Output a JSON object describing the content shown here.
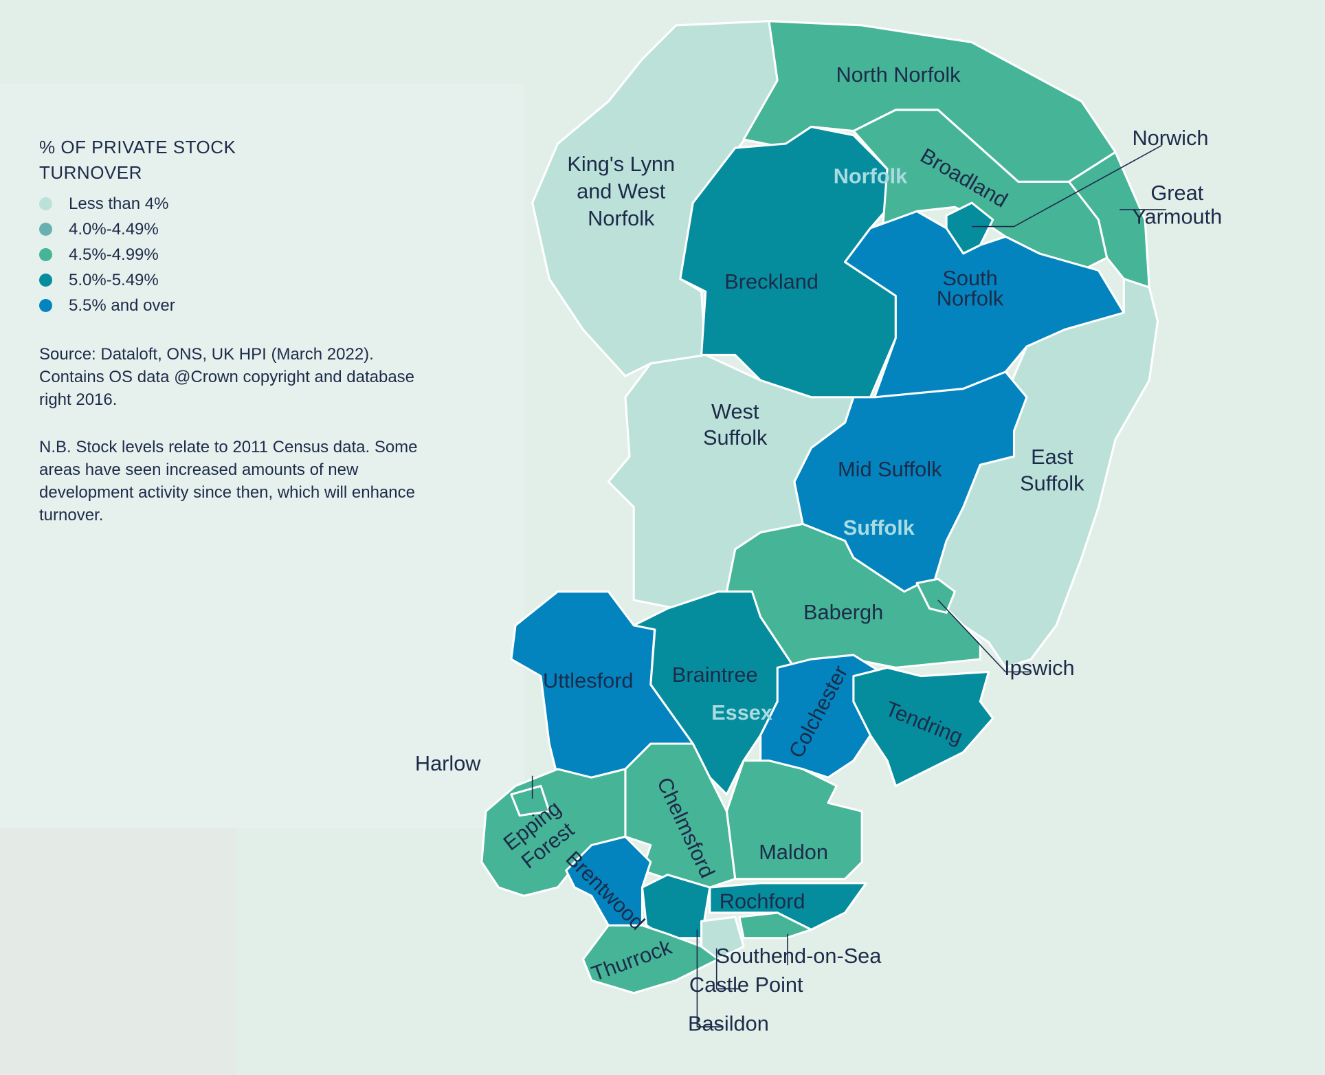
{
  "legend": {
    "title": "% OF PRIVATE STOCK TURNOVER",
    "items": [
      {
        "label": "Less than 4%",
        "color": "#bce1d9"
      },
      {
        "label": "4.0%-4.49%",
        "color": "#6bb0b1"
      },
      {
        "label": "4.5%-4.99%",
        "color": "#46b496"
      },
      {
        "label": "5.0%-5.49%",
        "color": "#068d9d"
      },
      {
        "label": "5.5% and over",
        "color": "#0384bf"
      }
    ]
  },
  "source": "Source: Dataloft, ONS, UK HPI (March 2022). Contains OS data @Crown copyright and database right 2016.",
  "note": "N.B. Stock levels relate to 2011 Census data. Some areas have seen increased amounts of new development activity since then, which will enhance turnover.",
  "counties": [
    "Norfolk",
    "Suffolk",
    "Essex"
  ],
  "regions": [
    {
      "lines": [
        "King's Lynn",
        "and West",
        "Norfolk"
      ],
      "color": "#bce1d9"
    },
    {
      "lines": [
        "North Norfolk"
      ],
      "color": "#46b496"
    },
    {
      "lines": [
        "Breckland"
      ],
      "color": "#068d9d"
    },
    {
      "lines": [
        "Broadland"
      ],
      "color": "#46b496"
    },
    {
      "lines": [
        "Norwich"
      ],
      "color": "#068d9d"
    },
    {
      "lines": [
        "Great",
        "Yarmouth"
      ],
      "color": "#46b496"
    },
    {
      "lines": [
        "South",
        "Norfolk"
      ],
      "color": "#0384bf"
    },
    {
      "lines": [
        "East",
        "Suffolk"
      ],
      "color": "#bce1d9"
    },
    {
      "lines": [
        "Mid Suffolk"
      ],
      "color": "#0384bf"
    },
    {
      "lines": [
        "West",
        "Suffolk"
      ],
      "color": "#bce1d9"
    },
    {
      "lines": [
        "Babergh"
      ],
      "color": "#46b496"
    },
    {
      "lines": [
        "Ipswich"
      ],
      "color": "#46b496"
    },
    {
      "lines": [
        "Uttlesford"
      ],
      "color": "#0384bf"
    },
    {
      "lines": [
        "Braintree"
      ],
      "color": "#068d9d"
    },
    {
      "lines": [
        "Colchester"
      ],
      "color": "#0384bf"
    },
    {
      "lines": [
        "Tendring"
      ],
      "color": "#068d9d"
    },
    {
      "lines": [
        "Maldon"
      ],
      "color": "#46b496"
    },
    {
      "lines": [
        "Chelmsford"
      ],
      "color": "#46b496"
    },
    {
      "lines": [
        "Epping",
        "Forest"
      ],
      "color": "#46b496"
    },
    {
      "lines": [
        "Harlow"
      ],
      "color": "#46b496"
    },
    {
      "lines": [
        "Brentwood"
      ],
      "color": "#0384bf"
    },
    {
      "lines": [
        "Basildon"
      ],
      "color": "#068d9d"
    },
    {
      "lines": [
        "Rochford"
      ],
      "color": "#068d9d"
    },
    {
      "lines": [
        "Castle Point"
      ],
      "color": "#bce1d9"
    },
    {
      "lines": [
        "Southend-on-Sea"
      ],
      "color": "#46b496"
    },
    {
      "lines": [
        "Thurrock"
      ],
      "color": "#46b496"
    }
  ]
}
